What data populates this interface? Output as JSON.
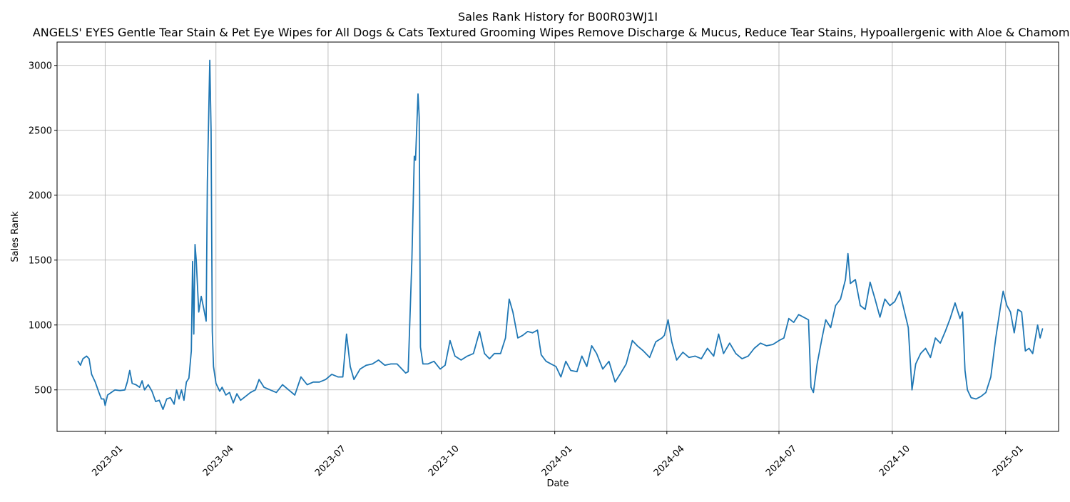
{
  "chart_data": {
    "type": "line",
    "title": "Sales Rank History for B00R03WJ1I",
    "subtitle": "ANGELS' EYES Gentle Tear Stain & Pet Eye Wipes for All Dogs & Cats Textured Grooming Wipes Remove Discharge & Mucus, Reduce Tear Stains, Hypoallergenic with Aloe & Chamomile",
    "xlabel": "Date",
    "ylabel": "Sales Rank",
    "xlim": [
      "2022-11-23",
      "2025-02-13"
    ],
    "ylim": [
      180,
      3180
    ],
    "x_ticks": [
      "2023-01",
      "2023-04",
      "2023-07",
      "2023-10",
      "2024-01",
      "2024-04",
      "2024-07",
      "2024-10",
      "2025-01"
    ],
    "y_ticks": [
      500,
      1000,
      1500,
      2000,
      2500,
      3000
    ],
    "grid": true,
    "line_color": "#1f77b4",
    "series": [
      {
        "points": [
          [
            "2022-12-10",
            720
          ],
          [
            "2022-12-12",
            690
          ],
          [
            "2022-12-14",
            740
          ],
          [
            "2022-12-17",
            760
          ],
          [
            "2022-12-19",
            740
          ],
          [
            "2022-12-21",
            620
          ],
          [
            "2022-12-24",
            560
          ],
          [
            "2022-12-27",
            480
          ],
          [
            "2022-12-29",
            430
          ],
          [
            "2022-12-31",
            430
          ],
          [
            "2023-01-01",
            380
          ],
          [
            "2023-01-03",
            460
          ],
          [
            "2023-01-06",
            480
          ],
          [
            "2023-01-09",
            500
          ],
          [
            "2023-01-13",
            495
          ],
          [
            "2023-01-17",
            500
          ],
          [
            "2023-01-19",
            560
          ],
          [
            "2023-01-21",
            650
          ],
          [
            "2023-01-23",
            550
          ],
          [
            "2023-01-26",
            540
          ],
          [
            "2023-01-29",
            520
          ],
          [
            "2023-01-31",
            570
          ],
          [
            "2023-02-02",
            500
          ],
          [
            "2023-02-05",
            540
          ],
          [
            "2023-02-08",
            490
          ],
          [
            "2023-02-11",
            410
          ],
          [
            "2023-02-14",
            420
          ],
          [
            "2023-02-17",
            350
          ],
          [
            "2023-02-20",
            430
          ],
          [
            "2023-02-23",
            440
          ],
          [
            "2023-02-26",
            390
          ],
          [
            "2023-02-28",
            500
          ],
          [
            "2023-03-02",
            430
          ],
          [
            "2023-03-04",
            500
          ],
          [
            "2023-03-06",
            420
          ],
          [
            "2023-03-08",
            560
          ],
          [
            "2023-03-10",
            590
          ],
          [
            "2023-03-12",
            800
          ],
          [
            "2023-03-13",
            1490
          ],
          [
            "2023-03-14",
            930
          ],
          [
            "2023-03-15",
            1620
          ],
          [
            "2023-03-16",
            1500
          ],
          [
            "2023-03-18",
            1100
          ],
          [
            "2023-03-20",
            1220
          ],
          [
            "2023-03-22",
            1130
          ],
          [
            "2023-03-24",
            1030
          ],
          [
            "2023-03-25",
            2100
          ],
          [
            "2023-03-27",
            3040
          ],
          [
            "2023-03-28",
            2500
          ],
          [
            "2023-03-29",
            950
          ],
          [
            "2023-03-30",
            680
          ],
          [
            "2023-04-01",
            550
          ],
          [
            "2023-04-04",
            490
          ],
          [
            "2023-04-06",
            520
          ],
          [
            "2023-04-09",
            460
          ],
          [
            "2023-04-12",
            480
          ],
          [
            "2023-04-15",
            400
          ],
          [
            "2023-04-18",
            470
          ],
          [
            "2023-04-21",
            420
          ],
          [
            "2023-04-25",
            450
          ],
          [
            "2023-04-29",
            480
          ],
          [
            "2023-05-03",
            500
          ],
          [
            "2023-05-06",
            580
          ],
          [
            "2023-05-10",
            520
          ],
          [
            "2023-05-15",
            500
          ],
          [
            "2023-05-20",
            480
          ],
          [
            "2023-05-25",
            540
          ],
          [
            "2023-05-30",
            500
          ],
          [
            "2023-06-04",
            460
          ],
          [
            "2023-06-09",
            600
          ],
          [
            "2023-06-14",
            540
          ],
          [
            "2023-06-19",
            560
          ],
          [
            "2023-06-24",
            560
          ],
          [
            "2023-06-29",
            580
          ],
          [
            "2023-07-04",
            620
          ],
          [
            "2023-07-09",
            600
          ],
          [
            "2023-07-13",
            600
          ],
          [
            "2023-07-16",
            930
          ],
          [
            "2023-07-19",
            680
          ],
          [
            "2023-07-22",
            580
          ],
          [
            "2023-07-27",
            660
          ],
          [
            "2023-08-01",
            690
          ],
          [
            "2023-08-06",
            700
          ],
          [
            "2023-08-11",
            730
          ],
          [
            "2023-08-16",
            690
          ],
          [
            "2023-08-21",
            700
          ],
          [
            "2023-08-26",
            700
          ],
          [
            "2023-08-31",
            650
          ],
          [
            "2023-09-02",
            630
          ],
          [
            "2023-09-04",
            640
          ],
          [
            "2023-09-07",
            1500
          ],
          [
            "2023-09-09",
            2300
          ],
          [
            "2023-09-10",
            2270
          ],
          [
            "2023-09-12",
            2780
          ],
          [
            "2023-09-13",
            2600
          ],
          [
            "2023-09-14",
            830
          ],
          [
            "2023-09-16",
            700
          ],
          [
            "2023-09-20",
            700
          ],
          [
            "2023-09-25",
            720
          ],
          [
            "2023-09-30",
            660
          ],
          [
            "2023-10-04",
            690
          ],
          [
            "2023-10-08",
            880
          ],
          [
            "2023-10-12",
            760
          ],
          [
            "2023-10-17",
            730
          ],
          [
            "2023-10-22",
            760
          ],
          [
            "2023-10-27",
            780
          ],
          [
            "2023-11-01",
            950
          ],
          [
            "2023-11-05",
            780
          ],
          [
            "2023-11-09",
            740
          ],
          [
            "2023-11-13",
            780
          ],
          [
            "2023-11-18",
            780
          ],
          [
            "2023-11-22",
            900
          ],
          [
            "2023-11-25",
            1200
          ],
          [
            "2023-11-28",
            1100
          ],
          [
            "2023-12-02",
            900
          ],
          [
            "2023-12-06",
            920
          ],
          [
            "2023-12-10",
            950
          ],
          [
            "2023-12-14",
            940
          ],
          [
            "2023-12-18",
            960
          ],
          [
            "2023-12-21",
            770
          ],
          [
            "2023-12-25",
            720
          ],
          [
            "2023-12-29",
            700
          ],
          [
            "2024-01-02",
            680
          ],
          [
            "2024-01-06",
            600
          ],
          [
            "2024-01-10",
            720
          ],
          [
            "2024-01-14",
            650
          ],
          [
            "2024-01-19",
            640
          ],
          [
            "2024-01-23",
            760
          ],
          [
            "2024-01-27",
            680
          ],
          [
            "2024-01-31",
            840
          ],
          [
            "2024-02-04",
            780
          ],
          [
            "2024-02-09",
            660
          ],
          [
            "2024-02-14",
            720
          ],
          [
            "2024-02-19",
            560
          ],
          [
            "2024-02-23",
            620
          ],
          [
            "2024-02-28",
            700
          ],
          [
            "2024-03-04",
            880
          ],
          [
            "2024-03-08",
            840
          ],
          [
            "2024-03-13",
            800
          ],
          [
            "2024-03-18",
            750
          ],
          [
            "2024-03-23",
            870
          ],
          [
            "2024-03-28",
            900
          ],
          [
            "2024-03-30",
            920
          ],
          [
            "2024-04-02",
            1040
          ],
          [
            "2024-04-05",
            870
          ],
          [
            "2024-04-09",
            730
          ],
          [
            "2024-04-14",
            790
          ],
          [
            "2024-04-19",
            750
          ],
          [
            "2024-04-24",
            760
          ],
          [
            "2024-04-29",
            740
          ],
          [
            "2024-05-04",
            820
          ],
          [
            "2024-05-09",
            760
          ],
          [
            "2024-05-13",
            930
          ],
          [
            "2024-05-17",
            780
          ],
          [
            "2024-05-22",
            860
          ],
          [
            "2024-05-27",
            780
          ],
          [
            "2024-06-01",
            740
          ],
          [
            "2024-06-06",
            760
          ],
          [
            "2024-06-11",
            820
          ],
          [
            "2024-06-16",
            860
          ],
          [
            "2024-06-21",
            840
          ],
          [
            "2024-06-26",
            850
          ],
          [
            "2024-07-01",
            880
          ],
          [
            "2024-07-05",
            900
          ],
          [
            "2024-07-09",
            1050
          ],
          [
            "2024-07-13",
            1020
          ],
          [
            "2024-07-17",
            1080
          ],
          [
            "2024-07-21",
            1060
          ],
          [
            "2024-07-25",
            1040
          ],
          [
            "2024-07-27",
            520
          ],
          [
            "2024-07-29",
            480
          ],
          [
            "2024-08-01",
            700
          ],
          [
            "2024-08-05",
            900
          ],
          [
            "2024-08-08",
            1040
          ],
          [
            "2024-08-12",
            980
          ],
          [
            "2024-08-16",
            1150
          ],
          [
            "2024-08-20",
            1200
          ],
          [
            "2024-08-24",
            1350
          ],
          [
            "2024-08-26",
            1550
          ],
          [
            "2024-08-28",
            1320
          ],
          [
            "2024-09-01",
            1350
          ],
          [
            "2024-09-05",
            1150
          ],
          [
            "2024-09-09",
            1120
          ],
          [
            "2024-09-13",
            1330
          ],
          [
            "2024-09-17",
            1200
          ],
          [
            "2024-09-21",
            1060
          ],
          [
            "2024-09-25",
            1200
          ],
          [
            "2024-09-29",
            1150
          ],
          [
            "2024-10-03",
            1180
          ],
          [
            "2024-10-07",
            1260
          ],
          [
            "2024-10-11",
            1100
          ],
          [
            "2024-10-14",
            980
          ],
          [
            "2024-10-17",
            500
          ],
          [
            "2024-10-20",
            700
          ],
          [
            "2024-10-24",
            780
          ],
          [
            "2024-10-28",
            820
          ],
          [
            "2024-11-01",
            750
          ],
          [
            "2024-11-05",
            900
          ],
          [
            "2024-11-09",
            860
          ],
          [
            "2024-11-13",
            950
          ],
          [
            "2024-11-17",
            1050
          ],
          [
            "2024-11-21",
            1170
          ],
          [
            "2024-11-25",
            1050
          ],
          [
            "2024-11-27",
            1100
          ],
          [
            "2024-11-29",
            650
          ],
          [
            "2024-12-01",
            500
          ],
          [
            "2024-12-04",
            440
          ],
          [
            "2024-12-08",
            430
          ],
          [
            "2024-12-12",
            450
          ],
          [
            "2024-12-16",
            480
          ],
          [
            "2024-12-20",
            600
          ],
          [
            "2024-12-24",
            900
          ],
          [
            "2024-12-28",
            1150
          ],
          [
            "2024-12-30",
            1260
          ],
          [
            "2025-01-02",
            1150
          ],
          [
            "2025-01-05",
            1100
          ],
          [
            "2025-01-08",
            940
          ],
          [
            "2025-01-11",
            1120
          ],
          [
            "2025-01-14",
            1100
          ],
          [
            "2025-01-17",
            800
          ],
          [
            "2025-01-20",
            820
          ],
          [
            "2025-01-23",
            780
          ],
          [
            "2025-01-27",
            1000
          ],
          [
            "2025-01-29",
            900
          ],
          [
            "2025-01-31",
            970
          ]
        ]
      }
    ]
  }
}
